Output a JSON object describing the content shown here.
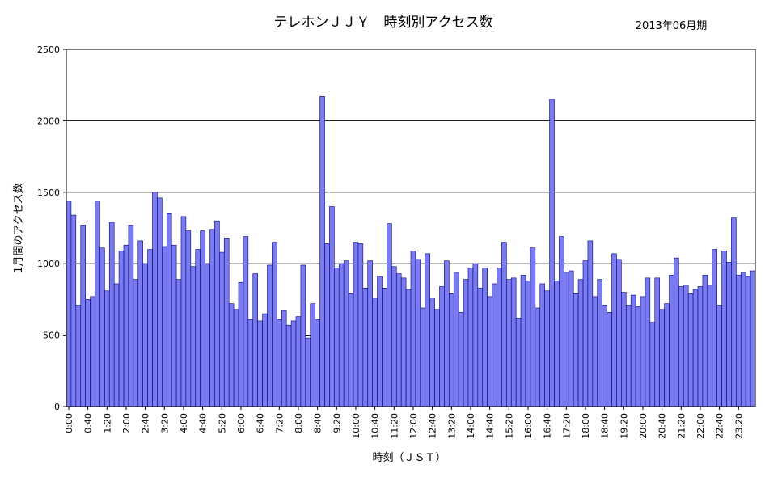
{
  "colors": {
    "bar_fill": "#7b7bf0",
    "bar_stroke": "#000080",
    "grid": "#000000",
    "background": "#ffffff"
  },
  "chart_data": {
    "type": "bar",
    "title": "テレホンＪＪＹ　時刻別アクセス数",
    "subtitle": "2013年06月期",
    "xlabel": "時刻（ＪＳＴ）",
    "ylabel": "1月間のアクセス数",
    "ylim": [
      0,
      2500
    ],
    "yticks": [
      0,
      500,
      1000,
      1500,
      2000,
      2500
    ],
    "grid": true,
    "legend": "none",
    "x_tick_labels": [
      "0:00",
      "0:40",
      "1:20",
      "2:00",
      "2:40",
      "3:20",
      "4:00",
      "4:40",
      "5:20",
      "6:00",
      "6:40",
      "7:20",
      "8:00",
      "8:40",
      "9:20",
      "10:00",
      "10:40",
      "11:20",
      "12:00",
      "12:40",
      "13:20",
      "14:00",
      "14:40",
      "15:20",
      "16:00",
      "16:40",
      "17:20",
      "18:00",
      "18:40",
      "19:20",
      "20:00",
      "20:40",
      "21:20",
      "22:00",
      "22:40",
      "23:20"
    ],
    "x_tick_every": 4,
    "bin_minutes": 10,
    "values": [
      1440,
      1340,
      710,
      1270,
      750,
      770,
      1440,
      1110,
      810,
      1290,
      860,
      1090,
      1130,
      1270,
      890,
      1160,
      1000,
      1100,
      1500,
      1460,
      1120,
      1350,
      1130,
      890,
      1330,
      1230,
      980,
      1100,
      1230,
      1000,
      1240,
      1300,
      1080,
      1180,
      720,
      680,
      870,
      1190,
      610,
      930,
      600,
      650,
      990,
      1150,
      610,
      670,
      570,
      600,
      630,
      990,
      480,
      720,
      610,
      2170,
      1140,
      1400,
      970,
      1000,
      1020,
      790,
      1150,
      1140,
      830,
      1020,
      760,
      910,
      830,
      1280,
      980,
      930,
      900,
      820,
      1090,
      1030,
      690,
      1070,
      760,
      680,
      840,
      1020,
      790,
      940,
      660,
      890,
      970,
      1000,
      830,
      970,
      770,
      860,
      970,
      1150,
      890,
      900,
      620,
      920,
      880,
      1110,
      690,
      860,
      810,
      2150,
      880,
      1190,
      940,
      950,
      790,
      890,
      1020,
      1160,
      770,
      890,
      710,
      660,
      1070,
      1030,
      800,
      710,
      780,
      700,
      770,
      900,
      590,
      900,
      680,
      720,
      920,
      1040,
      840,
      850,
      790,
      820,
      840,
      920,
      850,
      1100,
      710,
      1090,
      1010,
      1320,
      920,
      940,
      910,
      950
    ]
  }
}
